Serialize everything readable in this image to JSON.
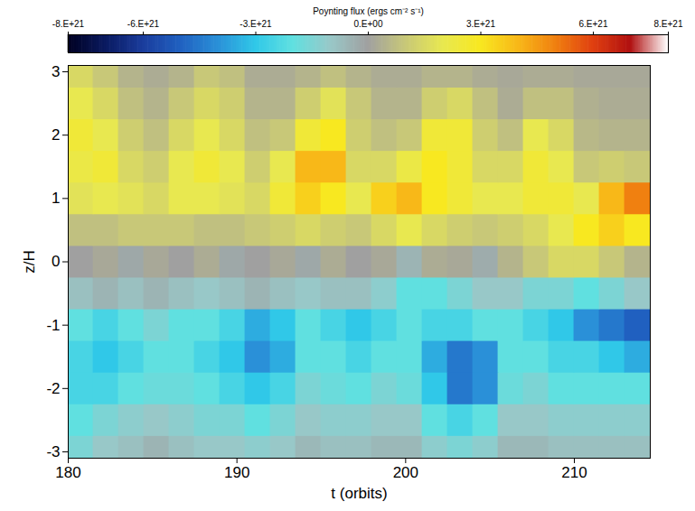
{
  "chart_data": {
    "type": "heatmap",
    "xlabel": "t (orbits)",
    "ylabel": "z/H",
    "xlim": [
      180,
      214.5
    ],
    "ylim": [
      -3.1,
      3.1
    ],
    "xticks": [
      180,
      190,
      200,
      210
    ],
    "yticks": [
      -3,
      -2,
      -1,
      0,
      1,
      2,
      3
    ],
    "x_edges": [
      180,
      181.5,
      183,
      184.5,
      186,
      187.5,
      189,
      190.5,
      192,
      193.5,
      195,
      196.5,
      198,
      199.5,
      201,
      202.5,
      204,
      205.5,
      207,
      208.5,
      210,
      211.5,
      213,
      214.5
    ],
    "y_edges": [
      -3.1,
      -2.75,
      -2.25,
      -1.75,
      -1.25,
      -0.75,
      -0.25,
      0.25,
      0.75,
      1.25,
      1.75,
      2.25,
      2.75,
      3.1
    ],
    "cells": [
      [
        -1.5e+21,
        -1e+21,
        -8e+20,
        -5e+20,
        -8e+20,
        -1e+21,
        -1e+21,
        -1.2e+21,
        -1e+21,
        -6e+20,
        -8e+20,
        -8e+20,
        -6e+20,
        -6e+20,
        -1.2e+21,
        -1.5e+21,
        -1.2e+21,
        -6e+20,
        -6e+20,
        -8e+20,
        -8e+20,
        -8e+20,
        -8e+20
      ],
      [
        -2e+21,
        -1.5e+21,
        -1.2e+21,
        -1e+21,
        -1.2e+21,
        -1.5e+21,
        -1.5e+21,
        -2e+21,
        -1.5e+21,
        -1e+21,
        -1.2e+21,
        -1.2e+21,
        -1e+21,
        -1e+21,
        -2e+21,
        -2.5e+21,
        -2e+21,
        -1e+21,
        -1e+21,
        -1.2e+21,
        -1.2e+21,
        -1.2e+21,
        -1.2e+21
      ],
      [
        -2.5e+21,
        -2.5e+21,
        -2e+21,
        -1.8e+21,
        -1.8e+21,
        -2e+21,
        -2.5e+21,
        -3e+21,
        -2.5e+21,
        -1.5e+21,
        -1.8e+21,
        -2e+21,
        -1.5e+21,
        -1.8e+21,
        -3e+21,
        -4.5e+21,
        -4e+21,
        -1.8e+21,
        -1.5e+21,
        -2e+21,
        -2e+21,
        -2e+21,
        -2e+21
      ],
      [
        -2.5e+21,
        -3e+21,
        -2.5e+21,
        -2e+21,
        -2e+21,
        -2.5e+21,
        -3e+21,
        -4e+21,
        -3.5e+21,
        -2e+21,
        -2e+21,
        -2.5e+21,
        -2e+21,
        -2e+21,
        -3.5e+21,
        -4.5e+21,
        -4e+21,
        -2e+21,
        -2e+21,
        -2.5e+21,
        -2.5e+21,
        -3e+21,
        -3.5e+21
      ],
      [
        -2e+21,
        -2.5e+21,
        -2e+21,
        -1.5e+21,
        -2e+21,
        -2e+21,
        -2.5e+21,
        -3.5e+21,
        -3e+21,
        -2e+21,
        -2.5e+21,
        -3e+21,
        -2.5e+21,
        -2e+21,
        -2.5e+21,
        -2.5e+21,
        -2e+21,
        -2e+21,
        -2.5e+21,
        -3e+21,
        -4e+21,
        -4.5e+21,
        -5e+21
      ],
      [
        -8e+20,
        -5e+20,
        -8e+20,
        -5e+20,
        -8e+20,
        -1e+21,
        -8e+20,
        -5e+20,
        -8e+20,
        -1e+21,
        -8e+20,
        -8e+20,
        -1.2e+21,
        -2e+21,
        -2e+21,
        -1.5e+21,
        -1e+21,
        -1e+21,
        -1.5e+21,
        -1.5e+21,
        -2e+21,
        -1.5e+21,
        -1e+21
      ],
      [
        0,
        2e+20,
        -2e+20,
        2e+20,
        0,
        3e+20,
        -2e+20,
        0,
        2e+20,
        -2e+20,
        3e+20,
        0,
        2e+20,
        -5e+20,
        3e+20,
        2e+20,
        -3e+20,
        5e+20,
        1e+21,
        1.5e+21,
        1.5e+21,
        1e+21,
        5e+20
      ],
      [
        8e+20,
        8e+20,
        1e+21,
        1e+21,
        1e+21,
        8e+20,
        8e+20,
        1e+21,
        1.2e+21,
        1.5e+21,
        1.2e+21,
        1e+21,
        1.5e+21,
        2e+21,
        1.5e+21,
        1.2e+21,
        1e+21,
        1.2e+21,
        1.5e+21,
        2e+21,
        3e+21,
        3.5e+21,
        3e+21
      ],
      [
        1.8e+21,
        2e+21,
        1.8e+21,
        1.5e+21,
        2e+21,
        2e+21,
        1.8e+21,
        1.5e+21,
        2.5e+21,
        3.5e+21,
        3e+21,
        2e+21,
        3.5e+21,
        4e+21,
        3e+21,
        2.5e+21,
        2e+21,
        2e+21,
        2.5e+21,
        2.5e+21,
        2e+21,
        4e+21,
        5e+21
      ],
      [
        2.2e+21,
        2.5e+21,
        1.5e+21,
        1.2e+21,
        2e+21,
        2.5e+21,
        2e+21,
        1.2e+21,
        2e+21,
        4e+21,
        4e+21,
        1.5e+21,
        1.5e+21,
        2.2e+21,
        3e+21,
        2.5e+21,
        1.5e+21,
        1.5e+21,
        2.5e+21,
        2e+21,
        1e+21,
        1.2e+21,
        1e+21
      ],
      [
        2.5e+21,
        2e+21,
        1.2e+21,
        8e+20,
        1.5e+21,
        2e+21,
        1.5e+21,
        8e+20,
        1e+21,
        2.5e+21,
        3e+21,
        1.2e+21,
        8e+20,
        1e+21,
        2.5e+21,
        2.5e+21,
        1.2e+21,
        8e+20,
        2e+21,
        1.5e+21,
        6e+20,
        5e+20,
        5e+20
      ],
      [
        2e+21,
        1.5e+21,
        8e+20,
        5e+20,
        1e+21,
        1.5e+21,
        1.2e+21,
        5e+20,
        5e+20,
        1.2e+21,
        1.8e+21,
        1e+21,
        5e+20,
        5e+20,
        1.2e+21,
        1.5e+21,
        8e+20,
        3e+20,
        8e+20,
        8e+20,
        4e+20,
        3e+20,
        3e+20
      ],
      [
        1.5e+21,
        1e+21,
        5e+20,
        3e+20,
        5e+20,
        1e+21,
        8e+20,
        3e+20,
        3e+20,
        5e+20,
        8e+20,
        5e+20,
        3e+20,
        3e+20,
        5e+20,
        5e+20,
        3e+20,
        2e+20,
        3e+20,
        3e+20,
        2e+20,
        2e+20,
        2e+20
      ]
    ],
    "colorbar": {
      "label": "Poynting flux (ergs cm⁻² s⁻¹)",
      "range": [
        -8e+21,
        8e+21
      ],
      "ticks": [
        {
          "value": -8e+21,
          "label": "-8.E+21"
        },
        {
          "value": -6e+21,
          "label": "-6.E+21"
        },
        {
          "value": -3e+21,
          "label": "-3.E+21"
        },
        {
          "value": 0,
          "label": "0.E+00"
        },
        {
          "value": 3e+21,
          "label": "3.E+21"
        },
        {
          "value": 6e+21,
          "label": "6.E+21"
        },
        {
          "value": 8e+21,
          "label": "8.E+21"
        }
      ],
      "colors": [
        "#000020",
        "#0a1a60",
        "#1a3c9c",
        "#2060c0",
        "#2a90d8",
        "#30c8e8",
        "#60e0e0",
        "#98c8c8",
        "#a0a0a0",
        "#c8c878",
        "#e8e850",
        "#f8e820",
        "#f8b818",
        "#f08010",
        "#e04010",
        "#b01010",
        "#ffffff"
      ]
    }
  }
}
